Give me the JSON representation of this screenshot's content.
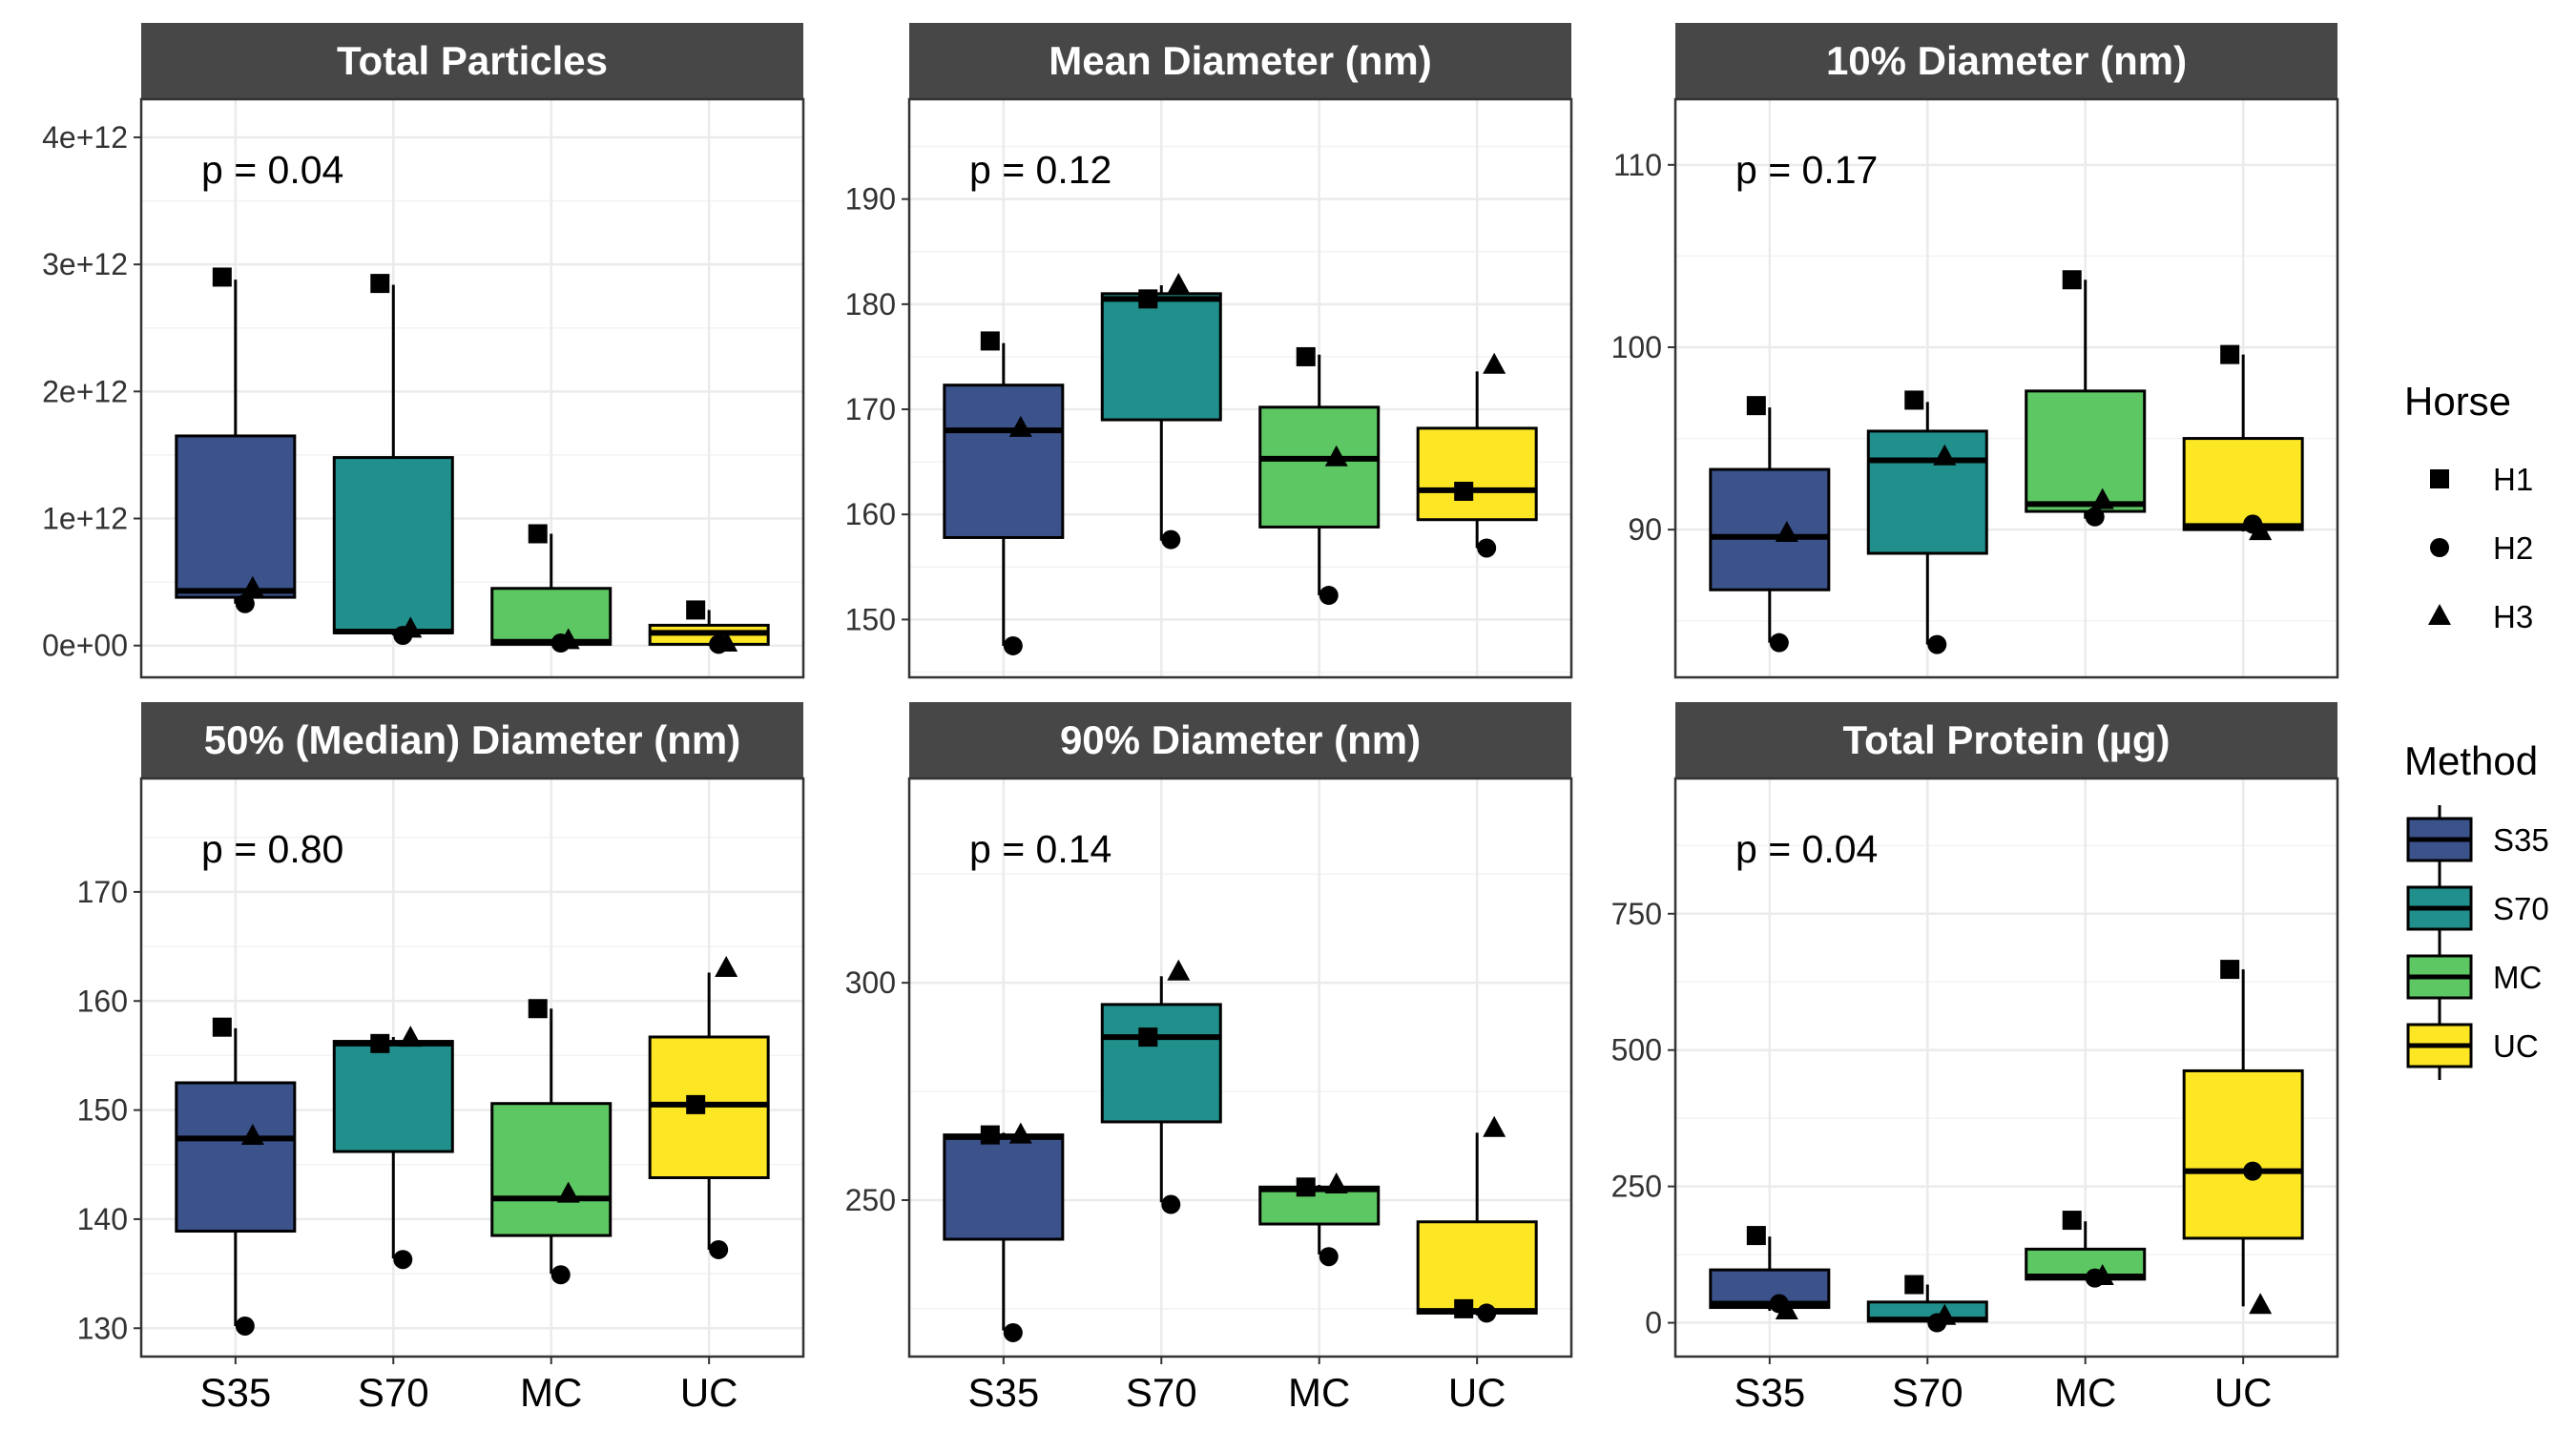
{
  "chart_data": [
    {
      "type": "box",
      "title": "Total Particles",
      "p_label": "p = 0.04",
      "categories": [
        "S35",
        "S70",
        "MC",
        "UC"
      ],
      "ylim": [
        -250000000000.0,
        4300000000000.0
      ],
      "y_ticks": [
        0,
        1000000000000.0,
        2000000000000.0,
        3000000000000.0,
        4000000000000.0
      ],
      "y_tick_labels": [
        "0e+00",
        "1e+12",
        "2e+12",
        "3e+12",
        "4e+12"
      ],
      "boxes": [
        {
          "category": "S35",
          "q1": 380000000000.0,
          "median": 430000000000.0,
          "q3": 1650000000000.0,
          "lower": 330000000000.0,
          "upper": 2880000000000.0
        },
        {
          "category": "S70",
          "q1": 100000000000.0,
          "median": 110000000000.0,
          "q3": 1480000000000.0,
          "lower": 80000000000.0,
          "upper": 2840000000000.0
        },
        {
          "category": "MC",
          "q1": 10000000000.0,
          "median": 30000000000.0,
          "q3": 450000000000.0,
          "lower": 0,
          "upper": 880000000000.0
        },
        {
          "category": "UC",
          "q1": 10000000000.0,
          "median": 100000000000.0,
          "q3": 160000000000.0,
          "lower": 0,
          "upper": 280000000000.0
        }
      ],
      "points": {
        "H1": [
          2900000000000.0,
          2850000000000.0,
          880000000000.0,
          280000000000.0
        ],
        "H2": [
          330000000000.0,
          80000000000.0,
          20000000000.0,
          10000000000.0
        ],
        "H3": [
          450000000000.0,
          130000000000.0,
          40000000000.0,
          20000000000.0
        ]
      }
    },
    {
      "type": "box",
      "title": "Mean Diameter (nm)",
      "p_label": "p = 0.12",
      "categories": [
        "S35",
        "S70",
        "MC",
        "UC"
      ],
      "ylim": [
        144.5,
        199.5
      ],
      "y_ticks": [
        150,
        160,
        170,
        180,
        190
      ],
      "y_tick_labels": [
        "150",
        "160",
        "170",
        "180",
        "190"
      ],
      "boxes": [
        {
          "category": "S35",
          "q1": 157.8,
          "median": 168.0,
          "q3": 172.3,
          "lower": 147.5,
          "upper": 176.3
        },
        {
          "category": "S70",
          "q1": 169.0,
          "median": 180.5,
          "q3": 181.0,
          "lower": 157.5,
          "upper": 181.8
        },
        {
          "category": "MC",
          "q1": 158.8,
          "median": 165.3,
          "q3": 170.2,
          "lower": 152.3,
          "upper": 175.2
        },
        {
          "category": "UC",
          "q1": 159.5,
          "median": 162.3,
          "q3": 168.2,
          "lower": 156.8,
          "upper": 173.6
        }
      ],
      "points": {
        "H1": [
          176.5,
          180.5,
          175.0,
          162.2
        ],
        "H2": [
          147.5,
          157.6,
          152.3,
          156.8
        ],
        "H3": [
          168.2,
          181.8,
          165.4,
          174.2
        ]
      }
    },
    {
      "type": "box",
      "title": "10% Diameter (nm)",
      "p_label": "p = 0.17",
      "categories": [
        "S35",
        "S70",
        "MC",
        "UC"
      ],
      "ylim": [
        81.9,
        113.6
      ],
      "y_ticks": [
        90,
        100,
        110
      ],
      "y_tick_labels": [
        "90",
        "100",
        "110"
      ],
      "boxes": [
        {
          "category": "S35",
          "q1": 86.7,
          "median": 89.6,
          "q3": 93.3,
          "lower": 83.8,
          "upper": 96.7
        },
        {
          "category": "S70",
          "q1": 88.7,
          "median": 93.8,
          "q3": 95.4,
          "lower": 83.7,
          "upper": 97.0
        },
        {
          "category": "MC",
          "q1": 91.0,
          "median": 91.4,
          "q3": 97.6,
          "lower": 90.6,
          "upper": 103.7
        },
        {
          "category": "UC",
          "q1": 90.0,
          "median": 90.2,
          "q3": 95.0,
          "lower": 89.9,
          "upper": 99.6
        }
      ],
      "points": {
        "H1": [
          96.8,
          97.1,
          103.7,
          99.6
        ],
        "H2": [
          83.8,
          83.7,
          90.7,
          90.3
        ],
        "H3": [
          89.8,
          94.0,
          91.6,
          89.9
        ]
      }
    },
    {
      "type": "box",
      "title": "50% (Median) Diameter (nm)",
      "p_label": "p = 0.80",
      "categories": [
        "S35",
        "S70",
        "MC",
        "UC"
      ],
      "ylim": [
        127.4,
        180.4
      ],
      "y_ticks": [
        130,
        140,
        150,
        160,
        170
      ],
      "y_tick_labels": [
        "130",
        "140",
        "150",
        "160",
        "170"
      ],
      "boxes": [
        {
          "category": "S35",
          "q1": 138.9,
          "median": 147.4,
          "q3": 152.5,
          "lower": 130.2,
          "upper": 157.5
        },
        {
          "category": "S70",
          "q1": 146.2,
          "median": 156.1,
          "q3": 156.3,
          "lower": 136.4,
          "upper": 156.7
        },
        {
          "category": "MC",
          "q1": 138.5,
          "median": 141.9,
          "q3": 150.6,
          "lower": 135.0,
          "upper": 159.3
        },
        {
          "category": "UC",
          "q1": 143.8,
          "median": 150.5,
          "q3": 156.7,
          "lower": 137.2,
          "upper": 162.6
        }
      ],
      "points": {
        "H1": [
          157.6,
          156.1,
          159.3,
          150.5
        ],
        "H2": [
          130.2,
          136.3,
          134.9,
          137.2
        ],
        "H3": [
          147.6,
          156.6,
          142.3,
          163.0
        ]
      }
    },
    {
      "type": "box",
      "title": "90% Diameter (nm)",
      "p_label": "p = 0.14",
      "categories": [
        "S35",
        "S70",
        "MC",
        "UC"
      ],
      "ylim": [
        214.0,
        347.0
      ],
      "y_ticks": [
        250,
        300
      ],
      "y_tick_labels": [
        "250",
        "300"
      ],
      "boxes": [
        {
          "category": "S35",
          "q1": 241.0,
          "median": 264.5,
          "q3": 265.0,
          "lower": 220.0,
          "upper": 265.5
        },
        {
          "category": "S70",
          "q1": 268.0,
          "median": 287.5,
          "q3": 295.0,
          "lower": 249.5,
          "upper": 301.5
        },
        {
          "category": "MC",
          "q1": 244.5,
          "median": 252.5,
          "q3": 253.0,
          "lower": 237.5,
          "upper": 253.5
        },
        {
          "category": "UC",
          "q1": 224.0,
          "median": 224.5,
          "q3": 245.0,
          "lower": 223.5,
          "upper": 265.5
        }
      ],
      "points": {
        "H1": [
          265.0,
          287.5,
          253.0,
          225.0
        ],
        "H2": [
          219.5,
          249.0,
          237.0,
          224.0
        ],
        "H3": [
          265.0,
          302.5,
          253.5,
          266.5
        ]
      }
    },
    {
      "type": "box",
      "title": "Total Protein (µg)",
      "p_label": "p = 0.04",
      "categories": [
        "S35",
        "S70",
        "MC",
        "UC"
      ],
      "ylim": [
        -62.0,
        998.0
      ],
      "y_ticks": [
        0,
        250,
        500,
        750
      ],
      "y_tick_labels": [
        "0",
        "250",
        "500",
        "750"
      ],
      "boxes": [
        {
          "category": "S35",
          "q1": 28,
          "median": 35,
          "q3": 97,
          "lower": 22,
          "upper": 158
        },
        {
          "category": "S70",
          "q1": 3,
          "median": 6,
          "q3": 38,
          "lower": 0,
          "upper": 70
        },
        {
          "category": "MC",
          "q1": 80,
          "median": 85,
          "q3": 135,
          "lower": 80,
          "upper": 186
        },
        {
          "category": "UC",
          "q1": 155,
          "median": 278,
          "q3": 462,
          "lower": 30,
          "upper": 648
        }
      ],
      "points": {
        "H1": [
          160,
          70,
          188,
          648
        ],
        "H2": [
          35,
          0,
          82,
          278
        ],
        "H3": [
          22,
          12,
          85,
          32
        ]
      }
    }
  ],
  "legend": {
    "horse_title": "Horse",
    "horse_items": [
      {
        "label": "H1",
        "shape": "square-icon"
      },
      {
        "label": "H2",
        "shape": "circle-icon"
      },
      {
        "label": "H3",
        "shape": "triangle-icon"
      }
    ],
    "method_title": "Method",
    "method_items": [
      {
        "label": "S35",
        "color": "#3B528B"
      },
      {
        "label": "S70",
        "color": "#21908C"
      },
      {
        "label": "MC",
        "color": "#5DC863"
      },
      {
        "label": "UC",
        "color": "#FDE725"
      }
    ]
  },
  "colors": {
    "S35": "#3B528B",
    "S70": "#21908C",
    "MC": "#5DC863",
    "UC": "#FDE725",
    "strip": "#474747",
    "grid": "#EBEBEB"
  }
}
